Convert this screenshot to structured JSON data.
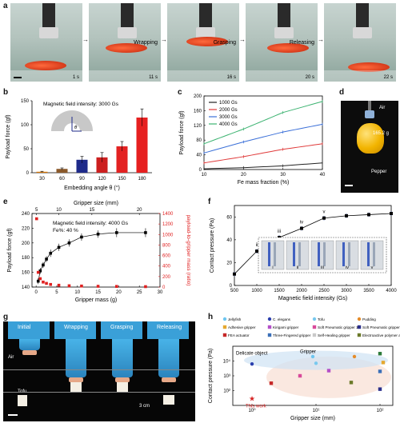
{
  "panels": {
    "a": "a",
    "b": "b",
    "c": "c",
    "d": "d",
    "e": "e",
    "f": "f",
    "g": "g",
    "h": "h"
  },
  "panel_a": {
    "frames": [
      {
        "label": "",
        "time": "1 s"
      },
      {
        "label": "Wrapping",
        "time": "11 s"
      },
      {
        "label": "Grasping",
        "time": "16 s"
      },
      {
        "label": "Releasing",
        "time": "20 s"
      },
      {
        "label": "",
        "time": "22 s"
      }
    ]
  },
  "panel_d": {
    "air": "Air",
    "weight": "165.2 g",
    "object": "Pepper"
  },
  "panel_g": {
    "frames": [
      {
        "label": "Initial"
      },
      {
        "label": "Wrapping"
      },
      {
        "label": "Grasping"
      },
      {
        "label": "Releasing"
      }
    ],
    "air": "Air",
    "tofu": "Tofu",
    "scale": "3 cm"
  },
  "chart_data": [
    {
      "panel": "b",
      "type": "bar",
      "annotation": "Magnetic field intensity: 3000 Gs",
      "xlabel": "Embedding angle θ (°)",
      "ylabel": "Payload force (gf)",
      "categories": [
        "30",
        "60",
        "90",
        "120",
        "150",
        "180"
      ],
      "values": [
        2,
        8,
        27,
        32,
        55,
        115
      ],
      "errors": [
        1,
        2,
        7,
        10,
        10,
        18
      ],
      "colors": [
        "#d97706",
        "#8b5a2b",
        "#1e2a8a",
        "#cc1f1f",
        "#e32222",
        "#e62020"
      ],
      "ylim": [
        0,
        150
      ],
      "yticks": [
        0,
        50,
        100,
        150
      ]
    },
    {
      "panel": "c",
      "type": "line",
      "xlabel": "Fe mass fraction (%)",
      "ylabel": "Payload force (gf)",
      "xlim": [
        10,
        40
      ],
      "ylim": [
        0,
        200
      ],
      "xticks": [
        10,
        20,
        30,
        40
      ],
      "yticks": [
        0,
        40,
        80,
        120,
        160,
        200
      ],
      "x": [
        10,
        20,
        30,
        40
      ],
      "series": [
        {
          "name": "1000 Gs",
          "color": "#222222",
          "values": [
            2,
            5,
            10,
            18
          ]
        },
        {
          "name": "2000 Gs",
          "color": "#e03a3a",
          "values": [
            18,
            35,
            55,
            70
          ]
        },
        {
          "name": "3000 Gs",
          "color": "#3a6fd8",
          "values": [
            45,
            75,
            102,
            123
          ]
        },
        {
          "name": "4000 Gs",
          "color": "#3cb371",
          "values": [
            70,
            110,
            155,
            185
          ]
        }
      ]
    },
    {
      "panel": "e",
      "type": "scatter",
      "annotation1": "Magnetic field intensity: 4000 Gs",
      "annotation2": "Fe%: 40 %",
      "xlabel": "Gripper mass (g)",
      "top_xlabel": "Gripper size (mm)",
      "ylabel": "Payload force (gf)",
      "ylabel_right": "payload-to-gripper mass (ratio)",
      "xlim": [
        -1,
        30
      ],
      "ylim": [
        140,
        240
      ],
      "xticks": [
        0,
        5,
        10,
        15,
        20,
        25,
        30
      ],
      "yticks": [
        140,
        160,
        180,
        200,
        220,
        240
      ],
      "top_ticks": [
        "5",
        "10",
        "15",
        "20"
      ],
      "ratio_ylim": [
        0,
        1400
      ],
      "ratio_yticks": [
        0,
        200,
        400,
        600,
        800,
        1000,
        1200,
        1400
      ],
      "payload_series": {
        "x": [
          0.5,
          1.0,
          1.7,
          2.5,
          3.5,
          5.5,
          8.0,
          11.0,
          15.0,
          19.5,
          26.5
        ],
        "y": [
          148,
          162,
          170,
          178,
          186,
          194,
          200,
          208,
          212,
          214,
          214
        ],
        "err": [
          4,
          4,
          4,
          4,
          5,
          5,
          5,
          5,
          5,
          6,
          6
        ]
      },
      "ratio_series": {
        "x": [
          0.12,
          0.5,
          1.0,
          1.7,
          2.5,
          3.5,
          5.5,
          8.0,
          11.0,
          15.0,
          19.5,
          26.5
        ],
        "y": [
          1300,
          280,
          160,
          95,
          70,
          50,
          35,
          25,
          20,
          15,
          12,
          8
        ]
      }
    },
    {
      "panel": "f",
      "type": "line",
      "xlabel": "Magnetic field intensity (Gs)",
      "ylabel": "Contact pressure (Pa)",
      "xlim": [
        500,
        4000
      ],
      "ylim": [
        0,
        70
      ],
      "xticks": [
        500,
        1000,
        1500,
        2000,
        2500,
        3000,
        3500,
        4000
      ],
      "yticks": [
        0,
        20,
        40,
        60
      ],
      "x": [
        500,
        1000,
        1500,
        2000,
        2500,
        3000,
        3500,
        4000
      ],
      "y": [
        10,
        30,
        42,
        50,
        59,
        61,
        62,
        63
      ],
      "err": [
        2,
        2,
        2,
        2,
        2,
        2,
        2,
        2
      ],
      "point_labels": [
        "",
        "ii",
        "iii",
        "iv",
        "v",
        "",
        "",
        ""
      ],
      "inset_labels": [
        "i",
        "ii",
        "iii",
        "iv",
        "v"
      ]
    },
    {
      "panel": "h",
      "type": "scatter",
      "xlabel": "Gripper size (mm)",
      "ylabel": "Contact pressure (Pa)",
      "xscale": "log",
      "yscale": "log",
      "xlim_exp": [
        -0.3,
        2.2
      ],
      "ylim_exp": [
        1,
        5
      ],
      "xticks": [
        "10⁰",
        "10¹",
        "10²"
      ],
      "yticks": [
        "10²",
        "10³",
        "10⁴"
      ],
      "legend": [
        {
          "name": "Jellyfish",
          "color": "#6ec6f0",
          "shape": "circle"
        },
        {
          "name": "C. elegans",
          "color": "#2b3fae",
          "shape": "circle"
        },
        {
          "name": "Tofu",
          "color": "#78c8ee",
          "shape": "circle"
        },
        {
          "name": "Pudding",
          "color": "#e58c2a",
          "shape": "circle"
        },
        {
          "name": "Adhesive gripper",
          "color": "#e5a830",
          "shape": "square"
        },
        {
          "name": "Kirigami gripper",
          "color": "#b44fc8",
          "shape": "square"
        },
        {
          "name": "Soft Pneumatic gripper 1",
          "color": "#d84a9a",
          "shape": "square"
        },
        {
          "name": "Soft Pneumatic gripper 2",
          "color": "#2b2f8a",
          "shape": "square"
        },
        {
          "name": "FEA actuator",
          "color": "#c62828",
          "shape": "square"
        },
        {
          "name": "Three-Fingered gripper",
          "color": "#3b6fb8",
          "shape": "square"
        },
        {
          "name": "Self-Healing gripper",
          "color": "#c9c9c9",
          "shape": "square"
        },
        {
          "name": "Electroactive polymer actuator",
          "color": "#6b7a2a",
          "shape": "square"
        }
      ],
      "points": [
        {
          "x": 0.0,
          "y": 3.8,
          "color": "#2b3fae",
          "shape": "circle"
        },
        {
          "x": 0.95,
          "y": 4.3,
          "color": "#6ec6f0",
          "shape": "circle"
        },
        {
          "x": 1.0,
          "y": 3.85,
          "color": "#78c8ee",
          "shape": "circle"
        },
        {
          "x": 1.6,
          "y": 4.3,
          "color": "#e58c2a",
          "shape": "circle"
        },
        {
          "x": 0.3,
          "y": 2.5,
          "color": "#c62828",
          "shape": "square"
        },
        {
          "x": 0.75,
          "y": 3.0,
          "color": "#d84a9a",
          "shape": "square"
        },
        {
          "x": 1.2,
          "y": 3.35,
          "color": "#b44fc8",
          "shape": "square"
        },
        {
          "x": 1.55,
          "y": 2.55,
          "color": "#6b7a2a",
          "shape": "square"
        },
        {
          "x": 2.0,
          "y": 4.5,
          "color": "#2d7a3a",
          "shape": "square"
        },
        {
          "x": 2.0,
          "y": 3.3,
          "color": "#3b6fb8",
          "shape": "square"
        },
        {
          "x": 2.0,
          "y": 2.1,
          "color": "#2b2f8a",
          "shape": "square"
        },
        {
          "x": 2.05,
          "y": 3.9,
          "color": "#e5a830",
          "shape": "square"
        }
      ],
      "star": {
        "x": 0.0,
        "y": 1.45,
        "label": "This work"
      },
      "annotations": {
        "gripper": "Gripper",
        "delicate": "Delicate object"
      }
    }
  ]
}
